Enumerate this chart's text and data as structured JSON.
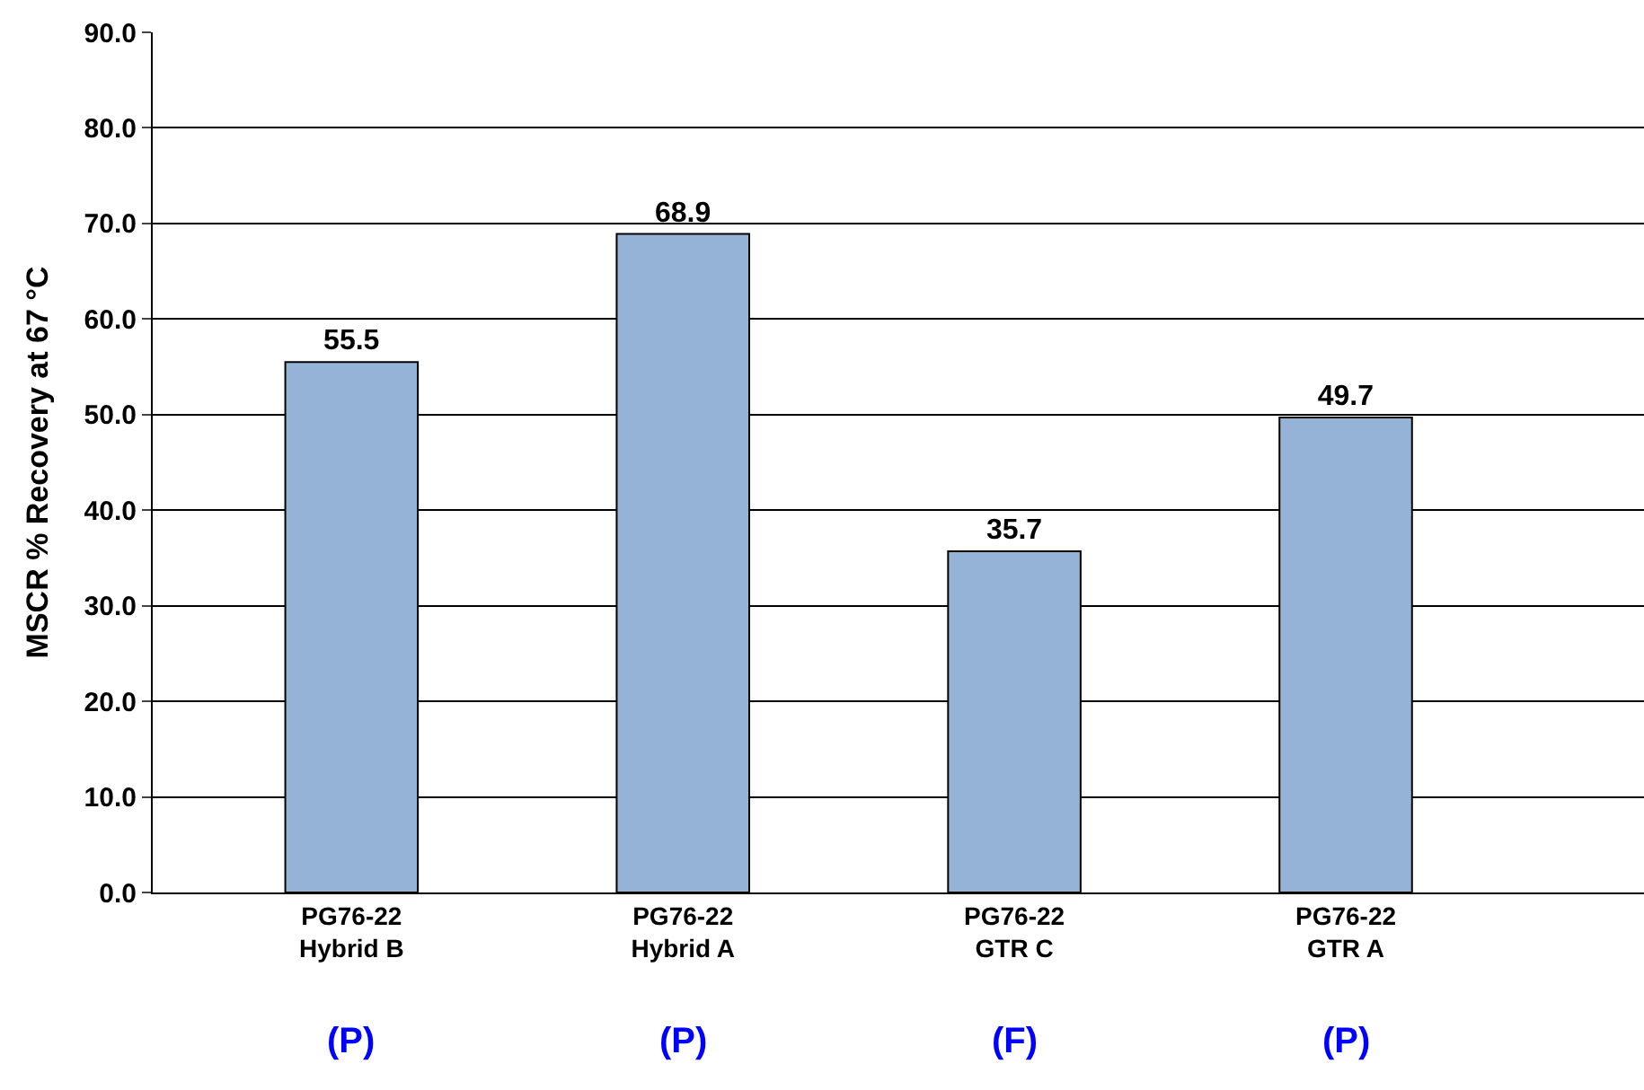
{
  "chart_data": {
    "type": "bar",
    "ylabel": "MSCR % Recovery at 67 °C",
    "categories": [
      "PG76-22\nHybrid B",
      "PG76-22\nHybrid A",
      "PG76-22\nGTR C",
      "PG76-22\nGTR A"
    ],
    "values": [
      55.5,
      68.9,
      35.7,
      49.7
    ],
    "color": "#95b3d7",
    "data_labels": true,
    "ylim": [
      0,
      90
    ],
    "yticks": [
      {
        "value": 0,
        "label": "0.0"
      },
      {
        "value": 10,
        "label": "10.0"
      },
      {
        "value": 20,
        "label": "20.0"
      },
      {
        "value": 30,
        "label": "30.0"
      },
      {
        "value": 40,
        "label": "40.0"
      },
      {
        "value": 50,
        "label": "50.0"
      },
      {
        "value": 60,
        "label": "60.0"
      },
      {
        "value": 70,
        "label": "70.0"
      },
      {
        "value": 80,
        "label": "80.0"
      },
      {
        "value": 90,
        "label": "90.0"
      }
    ],
    "grid": "y",
    "legend": false,
    "annotations": [
      "(P)",
      "(P)",
      "(F)",
      "(P)"
    ]
  }
}
